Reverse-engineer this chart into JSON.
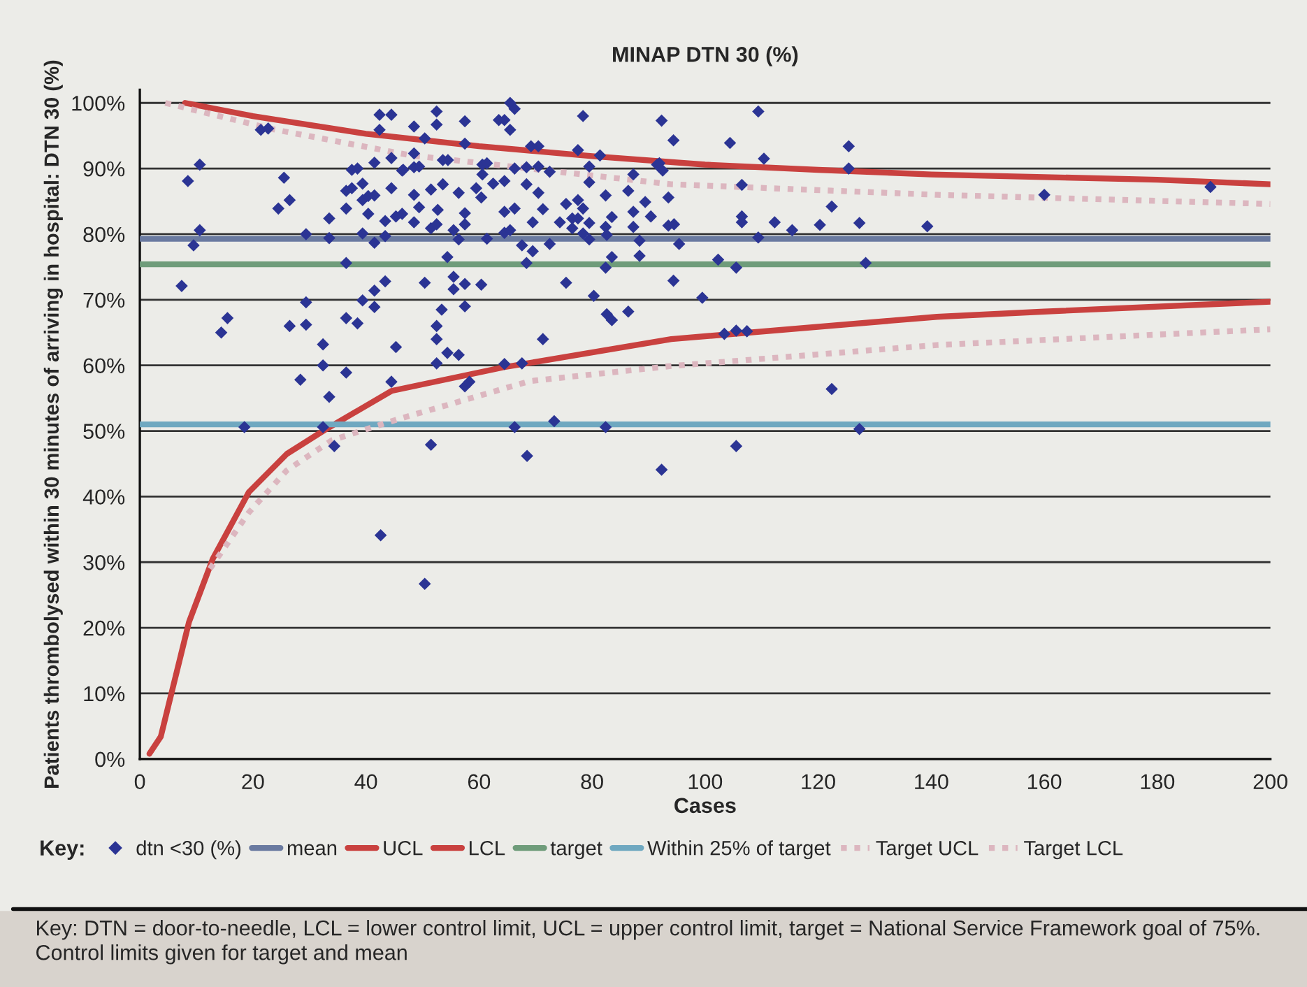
{
  "chart_data": {
    "type": "scatter",
    "title": "MINAP DTN 30 (%)",
    "xlabel": "Cases",
    "ylabel": "Patients thrombolysed within 30 minutes of arriving in hospital: DTN 30 (%)",
    "legend_title": "Key:",
    "legend": "bottom",
    "grid": "y",
    "xlim": [
      0,
      200
    ],
    "xticks": [
      0,
      20,
      40,
      60,
      80,
      100,
      120,
      140,
      160,
      180,
      200
    ],
    "ylim": [
      0,
      102
    ],
    "yticks": [
      {
        "value": 0,
        "label": "0%"
      },
      {
        "value": 10,
        "label": "10%"
      },
      {
        "value": 20,
        "label": "20%"
      },
      {
        "value": 30,
        "label": "30%"
      },
      {
        "value": 40,
        "label": "40%"
      },
      {
        "value": 50,
        "label": "50%"
      },
      {
        "value": 60,
        "label": "60%"
      },
      {
        "value": 70,
        "label": "70%"
      },
      {
        "value": 80,
        "label": "80%"
      },
      {
        "value": 90,
        "label": "90%"
      },
      {
        "value": 100,
        "label": "100%"
      }
    ],
    "annotations": [
      "Key: DTN = door-to-needle, LCL = lower control limit, UCL = upper control limit, target = National Service Framework goal of 75%. Control limits given for target and mean"
    ],
    "series": [
      {
        "name": "dtn <30 (%)",
        "marker": "diamond",
        "color": "#2b3494",
        "x": [
          21.4,
          22.7,
          8.5,
          10.6,
          25.5,
          24.5,
          26.5,
          10.6,
          9.5,
          7.4,
          15.5,
          14.4,
          18.5,
          29.4,
          33.5,
          33.5,
          36.5,
          29.4,
          26.5,
          29.4,
          32.4,
          32.4,
          28.4,
          36.5,
          33.5,
          32.4,
          36.5,
          38.5,
          39.4,
          41.5,
          41.5,
          43.4,
          45.3,
          44.5,
          36.5,
          36.5,
          37.5,
          37.5,
          38.5,
          39.4,
          39.4,
          40.4,
          41.5,
          40.4,
          39.4,
          41.5,
          43.4,
          43.4,
          41.5,
          42.4,
          44.5,
          42.4,
          44.5,
          46.4,
          44.5,
          45.3,
          46.4,
          52.5,
          52.5,
          48.5,
          57.5,
          63.5,
          64.5,
          65.5,
          66.3,
          65.5,
          78.4,
          92.3,
          50.4,
          57.5,
          48.5,
          69.2,
          70.5,
          77.5,
          81.4,
          91.5,
          46.6,
          48.5,
          49.4,
          53.6,
          54.5,
          60.6,
          61.4,
          60.6,
          62.5,
          64.5,
          66.3,
          68.4,
          70.5,
          72.5,
          79.5,
          79.5,
          87.3,
          86.4,
          82.4,
          51.5,
          53.6,
          56.4,
          59.5,
          60.4,
          68.4,
          70.5,
          48.5,
          49.4,
          52.7,
          57.5,
          64.5,
          66.3,
          71.3,
          75.4,
          77.5,
          78.4,
          89.4,
          87.3,
          90.4,
          93.5,
          48.5,
          51.5,
          52.5,
          57.5,
          55.5,
          56.4,
          61.4,
          64.5,
          65.5,
          69.5,
          74.3,
          76.5,
          76.5,
          77.5,
          79.5,
          78.4,
          79.5,
          82.4,
          82.6,
          87.3,
          88.4,
          83.5,
          67.6,
          69.5,
          72.5,
          54.4,
          68.4,
          83.5,
          88.4,
          82.4,
          50.4,
          55.5,
          55.5,
          57.5,
          60.4,
          75.4,
          80.3,
          53.4,
          57.5,
          52.5,
          52.5,
          82.6,
          83.5,
          86.4,
          71.3,
          54.4,
          56.4,
          52.5,
          64.5,
          67.6,
          57.5,
          58.3,
          66.3,
          73.3,
          82.4,
          51.5,
          94.4,
          109.4,
          104.4,
          125.4,
          91.9,
          92.5,
          110.4,
          125.4,
          106.5,
          122.4,
          93.5,
          94.5,
          106.5,
          106.5,
          112.3,
          115.4,
          120.3,
          127.3,
          139.3,
          109.4,
          95.4,
          102.3,
          105.5,
          128.4,
          94.4,
          99.5,
          103.4,
          105.5,
          107.4,
          122.4,
          127.3,
          105.5,
          160,
          189.4,
          34.4,
          42.6,
          50.4,
          68.5,
          92.3
        ],
        "values": [
          95.9,
          96.1,
          88.1,
          90.6,
          88.6,
          83.9,
          85.2,
          80.6,
          78.3,
          72.1,
          67.2,
          65,
          50.6,
          80,
          82.4,
          79.4,
          75.6,
          69.6,
          66,
          66.2,
          63.2,
          60,
          57.8,
          58.9,
          55.2,
          50.6,
          67.2,
          66.4,
          69.9,
          68.9,
          71.4,
          72.8,
          62.8,
          57.5,
          83.9,
          86.6,
          87,
          89.8,
          90,
          87.7,
          85.2,
          85.8,
          85.9,
          83.1,
          80.1,
          78.7,
          82,
          79.7,
          90.9,
          98.2,
          98.2,
          95.9,
          91.6,
          89.7,
          87,
          82.7,
          83.1,
          98.7,
          96.7,
          96.4,
          97.2,
          97.4,
          97.4,
          100,
          99.1,
          95.9,
          98,
          97.3,
          94.6,
          93.8,
          92.3,
          93.4,
          93.4,
          92.8,
          92,
          90.6,
          89.8,
          90.2,
          90.3,
          91.3,
          91.3,
          90.6,
          90.8,
          89.1,
          87.7,
          88.1,
          90,
          90.2,
          90.3,
          89.5,
          90.3,
          87.9,
          89.1,
          86.6,
          85.9,
          86.8,
          87.6,
          86.3,
          87,
          85.6,
          87.6,
          86.3,
          86,
          84.1,
          83.7,
          83.2,
          83.4,
          83.9,
          83.8,
          84.6,
          85.2,
          83.9,
          84.9,
          83.4,
          82.7,
          85.6,
          81.8,
          80.9,
          81.5,
          81.5,
          80.6,
          79.2,
          79.3,
          80.2,
          80.6,
          81.8,
          81.8,
          82.4,
          80.9,
          82.4,
          81.7,
          80.1,
          79.2,
          81.1,
          79.9,
          81.1,
          79,
          82.6,
          78.3,
          77.4,
          78.5,
          76.5,
          75.6,
          76.5,
          76.7,
          74.9,
          72.6,
          73.5,
          71.6,
          72.4,
          72.3,
          72.6,
          70.6,
          68.5,
          69,
          66,
          64,
          67.8,
          66.9,
          68.2,
          64,
          61.9,
          61.6,
          60.3,
          60.2,
          60.3,
          56.8,
          57.5,
          50.6,
          51.5,
          50.6,
          47.9,
          94.3,
          98.7,
          93.9,
          93.4,
          90.8,
          89.7,
          91.5,
          90,
          87.5,
          84.2,
          81.3,
          81.5,
          82.7,
          81.8,
          81.8,
          80.6,
          81.4,
          81.7,
          81.2,
          79.5,
          78.5,
          76.1,
          74.9,
          75.6,
          72.9,
          70.3,
          64.8,
          65.3,
          65.2,
          56.4,
          50.3,
          47.7,
          86,
          87.2,
          47.7,
          34.1,
          26.7,
          46.2,
          44.1
        ]
      },
      {
        "name": "mean",
        "type": "line",
        "line_style": "solid",
        "color": "#6a7aa0",
        "x": [
          0,
          200
        ],
        "values": [
          79.3,
          79.3
        ]
      },
      {
        "name": "UCL",
        "type": "line",
        "line_style": "solid",
        "color": "#c9413f",
        "x": [
          8,
          20,
          40,
          60,
          80,
          100,
          120,
          140,
          160,
          180,
          200
        ],
        "values": [
          100,
          98,
          95.3,
          93.4,
          91.9,
          90.6,
          89.8,
          89.1,
          88.7,
          88.3,
          87.6
        ]
      },
      {
        "name": "LCL",
        "type": "line",
        "line_style": "solid",
        "color": "#c9413f",
        "x": [
          1.7,
          3.7,
          8.7,
          12.9,
          19.3,
          26,
          32.6,
          44.5,
          64.3,
          94,
          141,
          160,
          200
        ],
        "values": [
          0.8,
          3.4,
          20.9,
          30.5,
          40.7,
          46.5,
          50.1,
          56.1,
          59.7,
          64,
          67.4,
          68.2,
          69.7
        ]
      },
      {
        "name": "target",
        "type": "line",
        "line_style": "solid",
        "color": "#6f9c7a",
        "x": [
          0,
          200
        ],
        "values": [
          75.4,
          75.4
        ]
      },
      {
        "name": "Within 25% of target",
        "type": "line",
        "line_style": "solid",
        "color": "#6fa8c0",
        "x": [
          0,
          200
        ],
        "values": [
          51,
          51
        ]
      },
      {
        "name": "Target UCL",
        "type": "line",
        "line_style": "dotted",
        "color": "#dcb6bf",
        "x": [
          4.5,
          23.5,
          48,
          94,
          141,
          200
        ],
        "values": [
          100,
          96,
          92,
          87.6,
          86,
          84.6
        ]
      },
      {
        "name": "Target LCL",
        "type": "line",
        "line_style": "dotted",
        "color": "#dcb6bf",
        "x": [
          12.4,
          19.3,
          26,
          34,
          45.7,
          69,
          94,
          141,
          200
        ],
        "values": [
          29,
          37.6,
          44,
          48.6,
          51.8,
          57.6,
          59.9,
          63.1,
          65.5
        ]
      }
    ]
  }
}
